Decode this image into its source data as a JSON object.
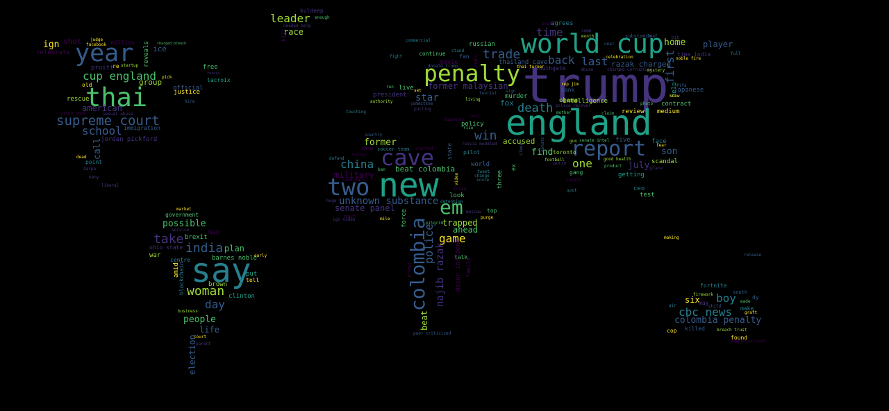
{
  "palette": {
    "background": "#000000",
    "colors": [
      "#440154",
      "#46337e",
      "#365c8d",
      "#277f8e",
      "#1fa187",
      "#4ac16d",
      "#a0da39",
      "#fde725"
    ]
  },
  "words": [
    {
      "text": "trump",
      "color": "#46337e"
    },
    {
      "text": "england",
      "color": "#1fa187"
    },
    {
      "text": "new",
      "color": "#1fa187"
    },
    {
      "text": "say",
      "color": "#277f8e"
    },
    {
      "text": "world cup",
      "color": "#1fa187"
    },
    {
      "text": "cave",
      "color": "#46337e"
    },
    {
      "text": "two",
      "color": "#365c8d"
    },
    {
      "text": "colombia",
      "color": "#365c8d"
    },
    {
      "text": "penalty",
      "color": "#a0da39"
    },
    {
      "text": "thai",
      "color": "#4ac16d"
    },
    {
      "text": "year",
      "color": "#365c8d"
    },
    {
      "text": "report",
      "color": "#365c8d"
    },
    {
      "text": "em",
      "color": "#4ac16d"
    },
    {
      "text": "supreme court",
      "color": "#365c8d"
    },
    {
      "text": "cbc news",
      "color": "#277f8e"
    },
    {
      "text": "india",
      "color": "#365c8d"
    },
    {
      "text": "woman",
      "color": "#a0da39"
    },
    {
      "text": "take",
      "color": "#46337e"
    },
    {
      "text": "trade",
      "color": "#365c8d"
    },
    {
      "text": "win",
      "color": "#365c8d"
    },
    {
      "text": "back",
      "color": "#365c8d"
    },
    {
      "text": "last",
      "color": "#365c8d"
    },
    {
      "text": "death",
      "color": "#277f8e"
    },
    {
      "text": "leader",
      "color": "#a0da39"
    },
    {
      "text": "china",
      "color": "#277f8e"
    },
    {
      "text": "cup england",
      "color": "#4ac16d"
    },
    {
      "text": "school",
      "color": "#365c8d"
    },
    {
      "text": "police",
      "color": "#365c8d"
    },
    {
      "text": "najib razak",
      "color": "#46337e"
    },
    {
      "text": "unknown substance",
      "color": "#365c8d"
    },
    {
      "text": "boy",
      "color": "#277f8e"
    },
    {
      "text": "colombia penalty",
      "color": "#365c8d"
    },
    {
      "text": "first",
      "color": "#365c8d"
    },
    {
      "text": "time",
      "color": "#46337e"
    },
    {
      "text": "one",
      "color": "#a0da39"
    },
    {
      "text": "game",
      "color": "#fde725"
    },
    {
      "text": "day",
      "color": "#365c8d"
    },
    {
      "text": "possible",
      "color": "#4ac16d"
    },
    {
      "text": "people",
      "color": "#4ac16d"
    },
    {
      "text": "home",
      "color": "#a0da39"
    },
    {
      "text": "former",
      "color": "#a0da39"
    },
    {
      "text": "july",
      "color": "#46337e"
    },
    {
      "text": "son",
      "color": "#365c8d"
    },
    {
      "text": "find",
      "color": "#4ac16d"
    },
    {
      "text": "beat colombia",
      "color": "#4ac16d"
    },
    {
      "text": "trapped",
      "color": "#a0da39"
    },
    {
      "text": "star",
      "color": "#365c8d"
    },
    {
      "text": "american",
      "color": "#46337e"
    },
    {
      "text": "group",
      "color": "#a0da39"
    },
    {
      "text": "ign",
      "color": "#fde725"
    },
    {
      "text": "ice",
      "color": "#365c8d"
    },
    {
      "text": "race",
      "color": "#a0da39"
    },
    {
      "text": "plan",
      "color": "#4ac16d"
    },
    {
      "text": "military",
      "color": "#440154"
    },
    {
      "text": "senate panel",
      "color": "#46337e"
    },
    {
      "text": "ahead",
      "color": "#4ac16d"
    },
    {
      "text": "accused",
      "color": "#a0da39"
    },
    {
      "text": "former malaysian",
      "color": "#46337e"
    },
    {
      "text": "life",
      "color": "#365c8d"
    },
    {
      "text": "six",
      "color": "#fde725"
    },
    {
      "text": "player",
      "color": "#365c8d"
    },
    {
      "text": "razak charged",
      "color": "#365c8d"
    },
    {
      "text": "shot",
      "color": "#440154"
    },
    {
      "text": "election",
      "color": "#365c8d"
    },
    {
      "text": "call",
      "color": "#365c8d"
    },
    {
      "text": "fox",
      "color": "#277f8e"
    },
    {
      "text": "beat",
      "color": "#a0da39"
    },
    {
      "text": "rescue",
      "color": "#a0da39"
    },
    {
      "text": "justice",
      "color": "#fde725"
    },
    {
      "text": "free",
      "color": "#4ac16d"
    },
    {
      "text": "lacroix",
      "color": "#1fa187"
    },
    {
      "text": "million",
      "color": "#440154"
    },
    {
      "text": "reveals",
      "color": "#4ac16d"
    },
    {
      "text": "intelligence",
      "color": "#a0da39"
    },
    {
      "text": "obama",
      "color": "#a0da39"
    },
    {
      "text": "murder",
      "color": "#4ac16d"
    },
    {
      "text": "review",
      "color": "#fde725"
    },
    {
      "text": "medium",
      "color": "#fde725"
    },
    {
      "text": "contract",
      "color": "#4ac16d"
    },
    {
      "text": "help",
      "color": "#1fa187"
    },
    {
      "text": "japanese",
      "color": "#365c8d"
    },
    {
      "text": "face",
      "color": "#277f8e"
    },
    {
      "text": "scandal",
      "color": "#a0da39"
    },
    {
      "text": "five",
      "color": "#365c8d"
    },
    {
      "text": "test",
      "color": "#4ac16d"
    },
    {
      "text": "getting",
      "color": "#1fa187"
    },
    {
      "text": "ceo",
      "color": "#277f8e"
    },
    {
      "text": "clinton",
      "color": "#1fa187"
    },
    {
      "text": "brown",
      "color": "#a0da39"
    },
    {
      "text": "barnes noble",
      "color": "#4ac16d"
    },
    {
      "text": "put",
      "color": "#1fa187"
    },
    {
      "text": "tell",
      "color": "#fde725"
    },
    {
      "text": "war",
      "color": "#a0da39"
    },
    {
      "text": "amid",
      "color": "#fde725"
    },
    {
      "text": "government",
      "color": "#4ac16d"
    },
    {
      "text": "brexit",
      "color": "#4ac16d"
    },
    {
      "text": "man",
      "color": "#440154"
    },
    {
      "text": "blockchain",
      "color": "#277f8e"
    },
    {
      "text": "ohio state",
      "color": "#46337e"
    },
    {
      "text": "centre",
      "color": "#277f8e"
    },
    {
      "text": "point",
      "color": "#277f8e"
    },
    {
      "text": "jordan pickford",
      "color": "#46337e"
    },
    {
      "text": "immigration",
      "color": "#365c8d"
    },
    {
      "text": "pruitt",
      "color": "#46337e"
    },
    {
      "text": "official",
      "color": "#365c8d"
    },
    {
      "text": "old",
      "color": "#fde725"
    },
    {
      "text": "celebrate",
      "color": "#440154"
    },
    {
      "text": "world",
      "color": "#365c8d"
    },
    {
      "text": "pilot",
      "color": "#277f8e"
    },
    {
      "text": "policy",
      "color": "#4ac16d"
    },
    {
      "text": "thailand cave",
      "color": "#365c8d"
    },
    {
      "text": "southgate",
      "color": "#46337e"
    },
    {
      "text": "bank",
      "color": "#365c8d"
    },
    {
      "text": "movie",
      "color": "#440154"
    },
    {
      "text": "continue",
      "color": "#4ac16d"
    },
    {
      "text": "fan",
      "color": "#365c8d"
    },
    {
      "text": "russian",
      "color": "#4ac16d"
    },
    {
      "text": "president",
      "color": "#46337e"
    },
    {
      "text": "live",
      "color": "#4ac16d"
    },
    {
      "text": "agrees",
      "color": "#277f8e"
    },
    {
      "text": "look",
      "color": "#4ac16d"
    },
    {
      "text": "force",
      "color": "#4ac16d"
    },
    {
      "text": "talk",
      "color": "#4ac16d"
    },
    {
      "text": "major incident",
      "color": "#440154"
    },
    {
      "text": "top",
      "color": "#4ac16d"
    },
    {
      "text": "family",
      "color": "#440154"
    },
    {
      "text": "gang",
      "color": "#4ac16d"
    },
    {
      "text": "toronto",
      "color": "#a0da39"
    },
    {
      "text": "three",
      "color": "#4ac16d"
    },
    {
      "text": "ex",
      "color": "#4ac16d"
    },
    {
      "text": "found",
      "color": "#fde725"
    },
    {
      "text": "cop",
      "color": "#fde725"
    },
    {
      "text": "killed",
      "color": "#365c8d"
    },
    {
      "text": "may",
      "color": "#46337e"
    },
    {
      "text": "make",
      "color": "#277f8e"
    },
    {
      "text": "fortnite",
      "color": "#277f8e"
    },
    {
      "text": "kuldeep",
      "color": "#46337e"
    },
    {
      "text": "kill",
      "color": "#440154"
    },
    {
      "text": "celebration",
      "color": "#fde725"
    },
    {
      "text": "leaf",
      "color": "#365c8d"
    },
    {
      "text": "substance",
      "color": "#365c8d"
    },
    {
      "text": "time india",
      "color": "#46337e"
    },
    {
      "text": "noble fire",
      "color": "#fde725"
    },
    {
      "text": "state",
      "color": "#365c8d"
    },
    {
      "text": "purge",
      "color": "#fde725"
    },
    {
      "text": "moscow",
      "color": "#46337e"
    },
    {
      "text": "mile",
      "color": "#fde725"
    },
    {
      "text": "country",
      "color": "#365c8d"
    },
    {
      "text": "started",
      "color": "#440154"
    },
    {
      "text": "soccer team",
      "color": "#277f8e"
    },
    {
      "text": "show",
      "color": "#440154"
    },
    {
      "text": "much",
      "color": "#440154"
    },
    {
      "text": "ign video",
      "color": "#46337e"
    },
    {
      "text": "market",
      "color": "#fde725"
    },
    {
      "text": "service",
      "color": "#46337e"
    },
    {
      "text": "early",
      "color": "#fde725"
    },
    {
      "text": "business",
      "color": "#a0da39"
    },
    {
      "text": "parent",
      "color": "#46337e"
    },
    {
      "text": "court",
      "color": "#fde725"
    },
    {
      "text": "making",
      "color": "#fde725"
    },
    {
      "text": "release",
      "color": "#365c8d"
    },
    {
      "text": "graft",
      "color": "#fde725"
    },
    {
      "text": "dy",
      "color": "#365c8d"
    },
    {
      "text": "made",
      "color": "#4ac16d"
    },
    {
      "text": "firework",
      "color": "#a0da39"
    },
    {
      "text": "south",
      "color": "#365c8d"
    },
    {
      "text": "dead",
      "color": "#fde725"
    },
    {
      "text": "darpa",
      "color": "#46337e"
    },
    {
      "text": "many",
      "color": "#46337e"
    },
    {
      "text": "liberal",
      "color": "#46337e"
    },
    {
      "text": "video show",
      "color": "#440154"
    },
    {
      "text": "sexual abuse",
      "color": "#46337e"
    },
    {
      "text": "judge",
      "color": "#fde725"
    },
    {
      "text": "facebook",
      "color": "#fde725"
    },
    {
      "text": "charged breach",
      "color": "#4ac16d"
    },
    {
      "text": "startup",
      "color": "#a0da39"
    },
    {
      "text": "re",
      "color": "#fde725"
    },
    {
      "text": "pick",
      "color": "#fde725"
    },
    {
      "text": "russia",
      "color": "#46337e"
    },
    {
      "text": "hire",
      "color": "#365c8d"
    },
    {
      "text": "needed help",
      "color": "#46337e"
    },
    {
      "text": "enough",
      "color": "#4ac16d"
    },
    {
      "text": "commercial",
      "color": "#277f8e"
    },
    {
      "text": "fight",
      "color": "#277f8e"
    },
    {
      "text": "stand",
      "color": "#277f8e"
    },
    {
      "text": "donald trump",
      "color": "#365c8d"
    },
    {
      "text": "authority",
      "color": "#a0da39"
    },
    {
      "text": "set",
      "color": "#fde725"
    },
    {
      "text": "putting",
      "color": "#46337e"
    },
    {
      "text": "touching",
      "color": "#277f8e"
    },
    {
      "text": "living",
      "color": "#a0da39"
    },
    {
      "text": "tourist",
      "color": "#365c8d"
    },
    {
      "text": "committee",
      "color": "#365c8d"
    },
    {
      "text": "happened",
      "color": "#440154"
    },
    {
      "text": "cost",
      "color": "#440154"
    },
    {
      "text": "rise",
      "color": "#4ac16d"
    },
    {
      "text": "russia meddled",
      "color": "#46337e"
    },
    {
      "text": "defend",
      "color": "#277f8e"
    },
    {
      "text": "using",
      "color": "#440154"
    },
    {
      "text": "ban",
      "color": "#4ac16d"
    },
    {
      "text": "candidate",
      "color": "#440154"
    },
    {
      "text": "huge",
      "color": "#46337e"
    },
    {
      "text": "tweet",
      "color": "#277f8e"
    },
    {
      "text": "change",
      "color": "#277f8e"
    },
    {
      "text": "score",
      "color": "#277f8e"
    },
    {
      "text": "tried",
      "color": "#440154"
    },
    {
      "text": "video",
      "color": "#fde725"
    },
    {
      "text": "detention",
      "color": "#277f8e"
    },
    {
      "text": "good health",
      "color": "#a0da39"
    },
    {
      "text": "product",
      "color": "#4ac16d"
    },
    {
      "text": "putin",
      "color": "#46337e"
    },
    {
      "text": "football",
      "color": "#a0da39"
    },
    {
      "text": "latest",
      "color": "#440154"
    },
    {
      "text": "spot",
      "color": "#277f8e"
    },
    {
      "text": "place",
      "color": "#46337e"
    },
    {
      "text": "claim",
      "color": "#4ac16d"
    },
    {
      "text": "photo",
      "color": "#4ac16d"
    },
    {
      "text": "senate intel",
      "color": "#4ac16d"
    },
    {
      "text": "gun",
      "color": "#a0da39"
    },
    {
      "text": "mother",
      "color": "#4ac16d"
    },
    {
      "text": "police recover",
      "color": "#46337e"
    },
    {
      "text": "rep jim",
      "color": "#fde725"
    },
    {
      "text": "sign",
      "color": "#365c8d"
    },
    {
      "text": "thai turner",
      "color": "#fde725"
    },
    {
      "text": "abuse",
      "color": "#46337e"
    },
    {
      "text": "charged corruption",
      "color": "#46337e"
    },
    {
      "text": "near",
      "color": "#365c8d"
    },
    {
      "text": "month",
      "color": "#a0da39"
    },
    {
      "text": "come",
      "color": "#46337e"
    },
    {
      "text": "post",
      "color": "#440154"
    },
    {
      "text": "hit",
      "color": "#46337e"
    },
    {
      "text": "full",
      "color": "#277f8e"
    },
    {
      "text": "fifa",
      "color": "#365c8d"
    },
    {
      "text": "know",
      "color": "#fde725"
    },
    {
      "text": "fear",
      "color": "#fde725"
    },
    {
      "text": "mystery",
      "color": "#a0da39"
    },
    {
      "text": "senate",
      "color": "#365c8d"
    },
    {
      "text": "sleep",
      "color": "#365c8d"
    },
    {
      "text": "run",
      "color": "#4ac16d"
    },
    {
      "text": "air",
      "color": "#277f8e"
    },
    {
      "text": "child",
      "color": "#365c8d"
    },
    {
      "text": "breach trust",
      "color": "#a0da39"
    },
    {
      "text": "aleppo accused",
      "color": "#440154"
    },
    {
      "text": "prompt",
      "color": "#440154"
    },
    {
      "text": "poor criticized",
      "color": "#365c8d"
    },
    {
      "text": "pilgrim",
      "color": "#4ac16d"
    },
    {
      "text": "might",
      "color": "#440154"
    },
    {
      "text": "rumor",
      "color": "#440154"
    }
  ]
}
